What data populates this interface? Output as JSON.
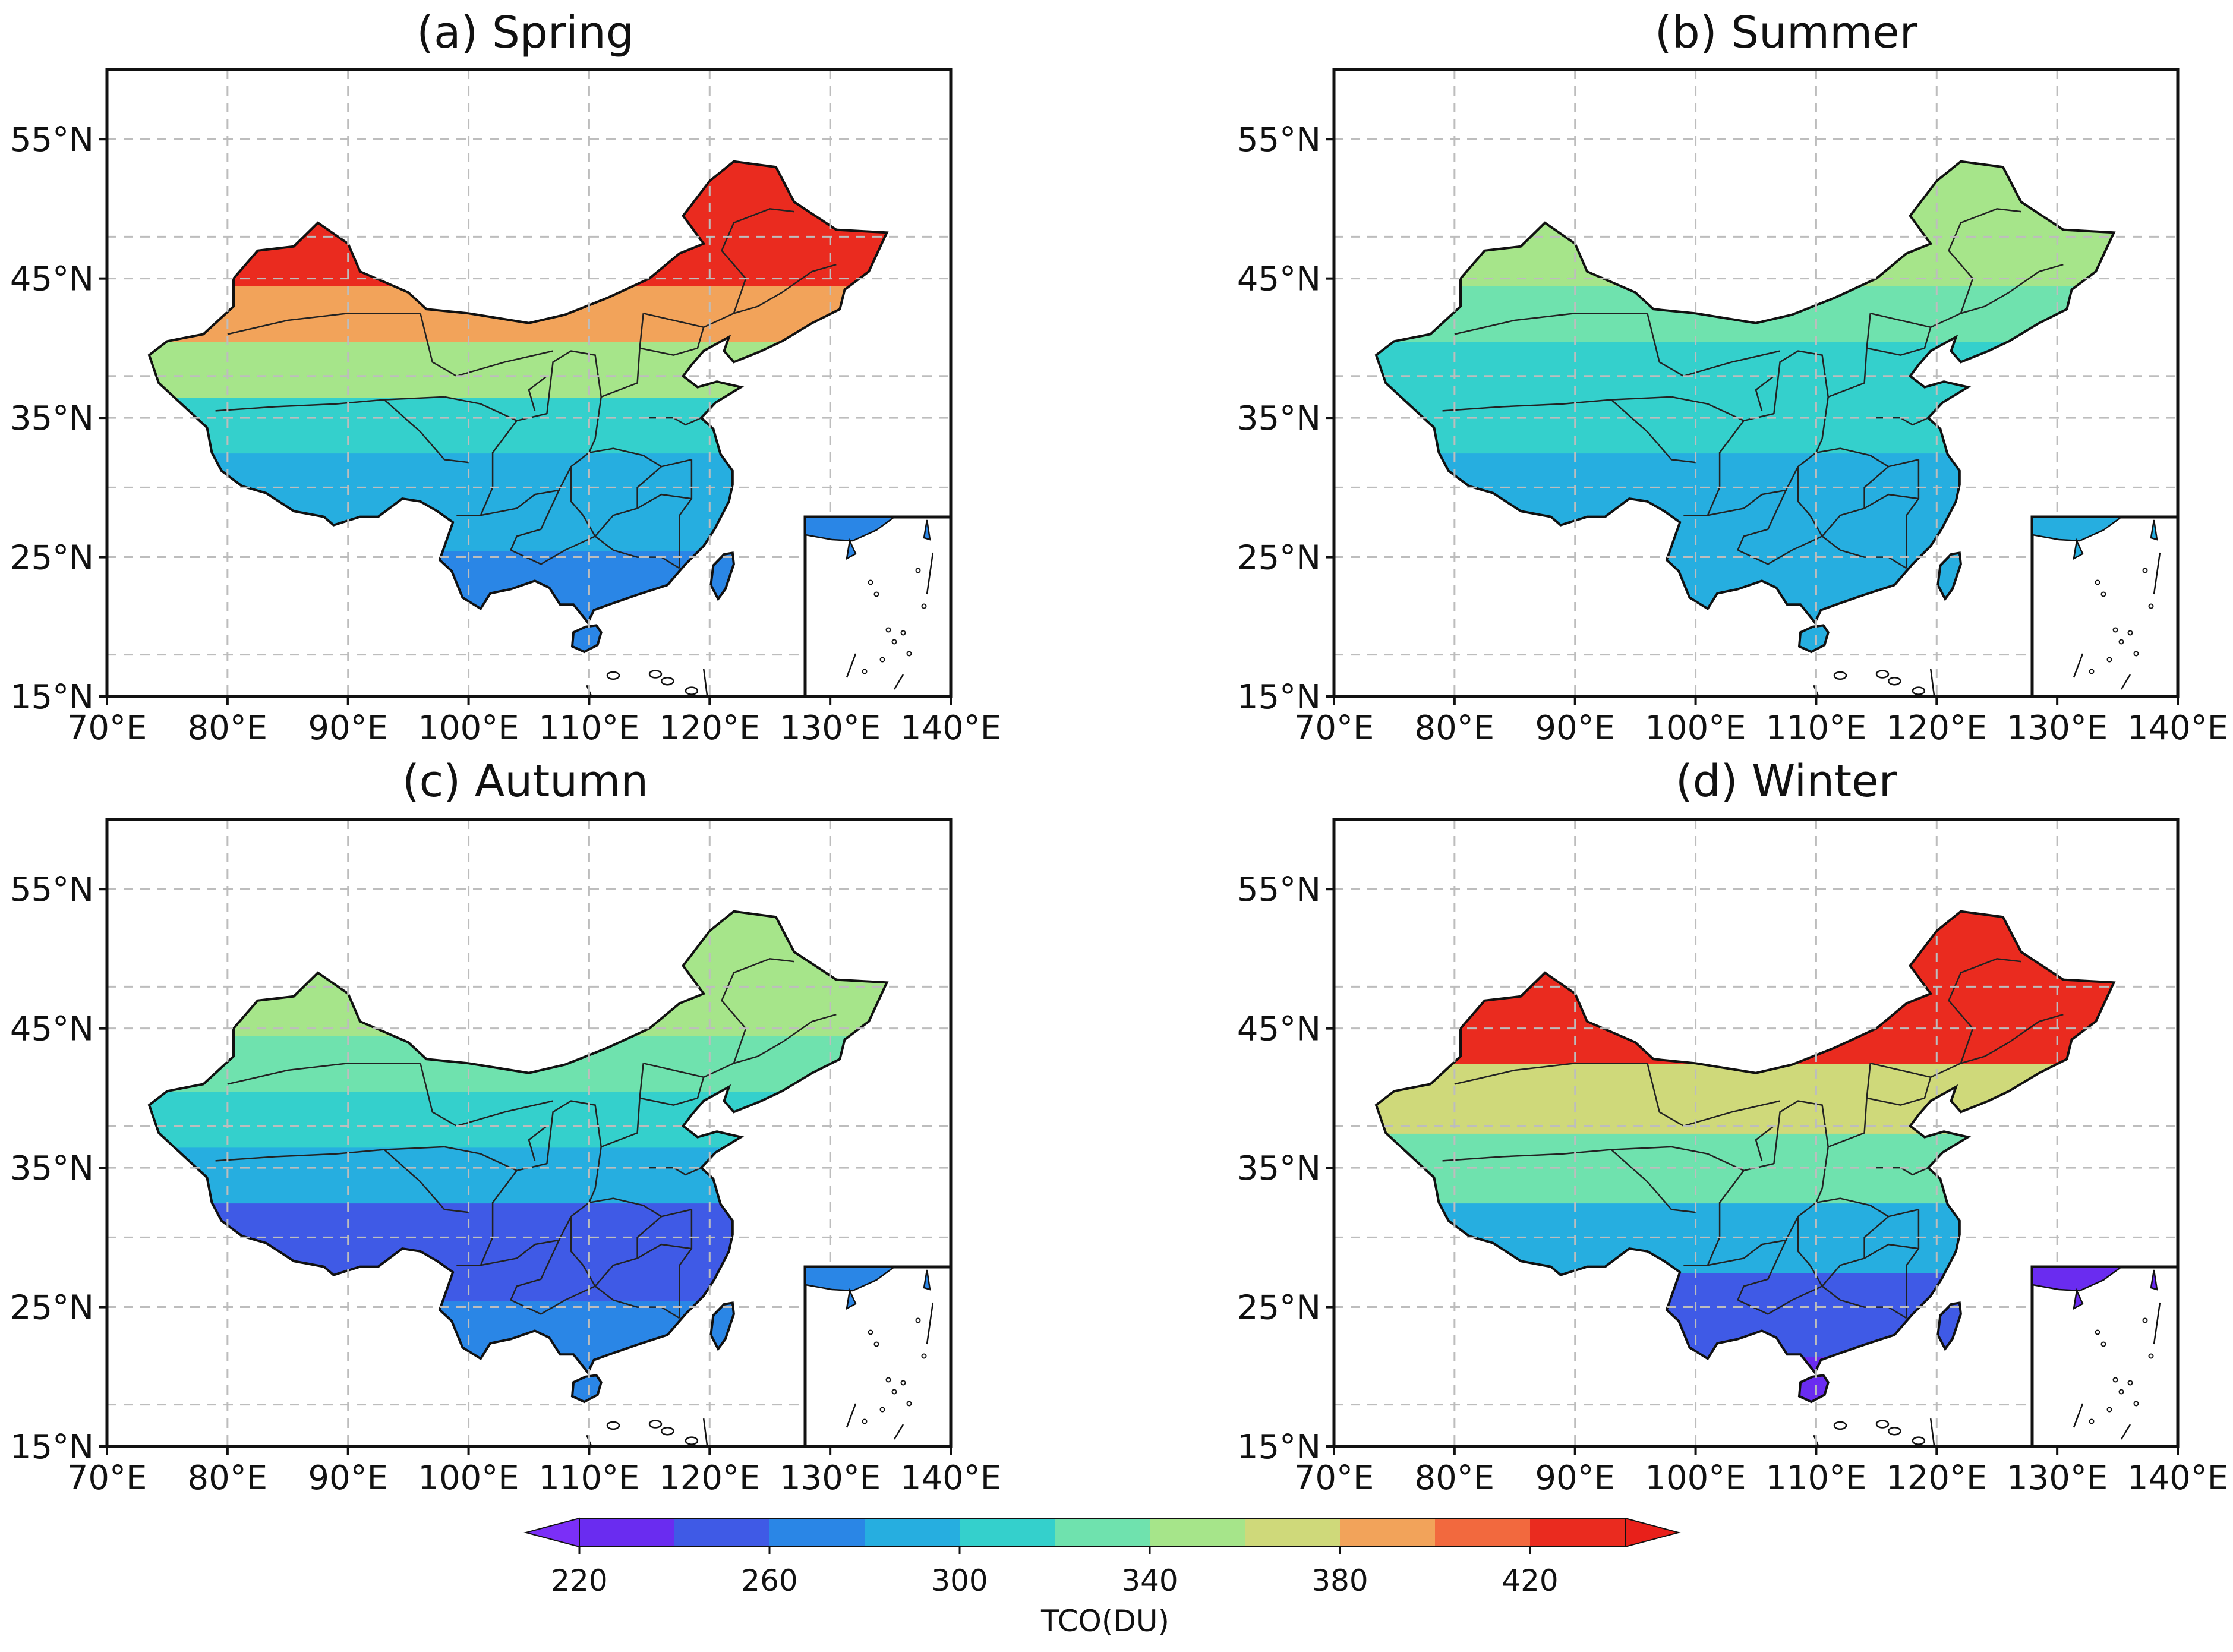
{
  "figure": {
    "panels": [
      {
        "title": "(a) Spring",
        "season": "spring"
      },
      {
        "title": "(b) Summer",
        "season": "summer"
      },
      {
        "title": "(c) Autumn",
        "season": "autumn"
      },
      {
        "title": "(d) Winter",
        "season": "winter"
      }
    ],
    "lat_ticks": [
      "55°N",
      "45°N",
      "35°N",
      "25°N",
      "15°N"
    ],
    "lon_ticks": [
      "70°E",
      "80°E",
      "90°E",
      "100°E",
      "110°E",
      "120°E",
      "130°E",
      "140°E"
    ],
    "colorbar": {
      "label": "TCO(DU)",
      "tick_labels": [
        "220",
        "260",
        "300",
        "340",
        "380",
        "420"
      ],
      "levels": [
        220,
        240,
        260,
        280,
        300,
        320,
        340,
        360,
        380,
        400,
        420,
        440
      ],
      "colors": [
        "#6a2cf0",
        "#3f5ae6",
        "#2a86e6",
        "#26aee0",
        "#34d0cc",
        "#6fe2ae",
        "#a6e58a",
        "#cfd97a",
        "#f2a35a",
        "#f2693e",
        "#ea2b1f"
      ],
      "under_color": "#7b2ff7",
      "over_color": "#e8201a"
    }
  },
  "chart_data": [
    {
      "type": "heatmap",
      "title": "(a) Spring",
      "variable": "TCO(DU)",
      "extent": {
        "lon": [
          70,
          140
        ],
        "lat": [
          15,
          60
        ]
      },
      "bands": [
        {
          "lat_min": 15,
          "lat_max": 28,
          "value": 275
        },
        {
          "lat_min": 28,
          "lat_max": 35,
          "value": 285
        },
        {
          "lat_min": 35,
          "lat_max": 39,
          "value": 310
        },
        {
          "lat_min": 39,
          "lat_max": 43,
          "value": 345
        },
        {
          "lat_min": 43,
          "lat_max": 47,
          "value": 390
        },
        {
          "lat_min": 47,
          "lat_max": 60,
          "value": 425
        }
      ]
    },
    {
      "type": "heatmap",
      "title": "(b) Summer",
      "variable": "TCO(DU)",
      "extent": {
        "lon": [
          70,
          140
        ],
        "lat": [
          15,
          60
        ]
      },
      "bands": [
        {
          "lat_min": 15,
          "lat_max": 28,
          "value": 295
        },
        {
          "lat_min": 28,
          "lat_max": 35,
          "value": 285
        },
        {
          "lat_min": 35,
          "lat_max": 39,
          "value": 300
        },
        {
          "lat_min": 39,
          "lat_max": 43,
          "value": 315
        },
        {
          "lat_min": 43,
          "lat_max": 47,
          "value": 330
        },
        {
          "lat_min": 47,
          "lat_max": 60,
          "value": 345
        }
      ]
    },
    {
      "type": "heatmap",
      "title": "(c) Autumn",
      "variable": "TCO(DU)",
      "extent": {
        "lon": [
          70,
          140
        ],
        "lat": [
          15,
          60
        ]
      },
      "bands": [
        {
          "lat_min": 15,
          "lat_max": 28,
          "value": 275
        },
        {
          "lat_min": 28,
          "lat_max": 35,
          "value": 255
        },
        {
          "lat_min": 35,
          "lat_max": 39,
          "value": 285
        },
        {
          "lat_min": 39,
          "lat_max": 43,
          "value": 305
        },
        {
          "lat_min": 43,
          "lat_max": 47,
          "value": 320
        },
        {
          "lat_min": 47,
          "lat_max": 60,
          "value": 345
        }
      ]
    },
    {
      "type": "heatmap",
      "title": "(d) Winter",
      "variable": "TCO(DU)",
      "extent": {
        "lon": [
          70,
          140
        ],
        "lat": [
          15,
          60
        ]
      },
      "bands": [
        {
          "lat_min": 15,
          "lat_max": 24,
          "value": 230
        },
        {
          "lat_min": 24,
          "lat_max": 30,
          "value": 255
        },
        {
          "lat_min": 30,
          "lat_max": 35,
          "value": 285
        },
        {
          "lat_min": 35,
          "lat_max": 40,
          "value": 320
        },
        {
          "lat_min": 40,
          "lat_max": 45,
          "value": 370
        },
        {
          "lat_min": 45,
          "lat_max": 60,
          "value": 425
        }
      ]
    }
  ]
}
